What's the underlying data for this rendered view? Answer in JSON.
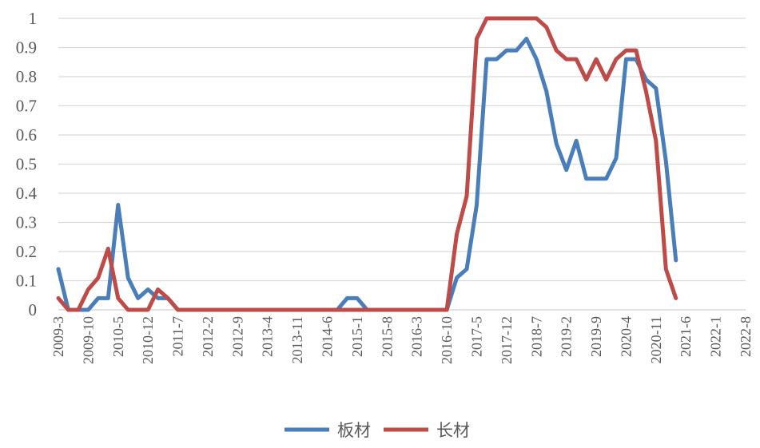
{
  "chart_data": {
    "type": "line",
    "x": [
      "2009-3",
      "2009-6",
      "2009-8",
      "2009-10",
      "2009-12",
      "2010-3",
      "2010-5",
      "2010-8",
      "2010-10",
      "2010-12",
      "2011-3",
      "2011-5",
      "2011-7",
      "2011-10",
      "2011-12",
      "2012-2",
      "2012-5",
      "2012-7",
      "2012-9",
      "2012-12",
      "2013-2",
      "2013-4",
      "2013-7",
      "2013-9",
      "2013-11",
      "2014-2",
      "2014-4",
      "2014-6",
      "2014-9",
      "2014-11",
      "2015-1",
      "2015-4",
      "2015-6",
      "2015-8",
      "2015-11",
      "2016-1",
      "2016-3",
      "2016-6",
      "2016-8",
      "2016-10",
      "2017-1",
      "2017-3",
      "2017-5",
      "2017-8",
      "2017-10",
      "2017-12",
      "2018-3",
      "2018-5",
      "2018-7",
      "2018-10",
      "2018-12",
      "2019-2",
      "2019-5",
      "2019-7",
      "2019-9",
      "2019-12",
      "2020-2",
      "2020-4",
      "2020-7",
      "2020-9",
      "2020-11",
      "2021-2",
      "2021-4",
      "2021-6",
      "2021-9",
      "2021-11",
      "2022-1",
      "2022-4",
      "2022-6",
      "2022-8"
    ],
    "x_tick_labels": [
      "2009-3",
      "2009-10",
      "2010-5",
      "2010-12",
      "2011-7",
      "2012-2",
      "2012-9",
      "2013-4",
      "2013-11",
      "2014-6",
      "2015-1",
      "2015-8",
      "2016-3",
      "2016-10",
      "2017-5",
      "2017-12",
      "2018-7",
      "2019-2",
      "2019-9",
      "2020-4",
      "2020-11",
      "2021-6",
      "2022-1",
      "2022-8"
    ],
    "series": [
      {
        "name": "板材",
        "color": "#4a7ebb",
        "values": [
          0.14,
          0,
          0,
          0,
          0.04,
          0.04,
          0.36,
          0.11,
          0.04,
          0.07,
          0.04,
          0.04,
          0,
          0,
          0,
          0,
          0,
          0,
          0,
          0,
          0,
          0,
          0,
          0,
          0,
          0,
          0,
          0,
          0,
          0.04,
          0.04,
          0,
          0,
          0,
          0,
          0,
          0,
          0,
          0,
          0,
          0.11,
          0.14,
          0.36,
          0.86,
          0.86,
          0.89,
          0.89,
          0.93,
          0.86,
          0.75,
          0.57,
          0.48,
          0.58,
          0.45,
          0.45,
          0.45,
          0.52,
          0.86,
          0.86,
          0.79,
          0.76,
          0.51,
          0.17,
          null,
          null,
          null,
          null,
          null,
          null,
          null
        ]
      },
      {
        "name": "长材",
        "color": "#be4b48",
        "values": [
          0.04,
          0,
          0,
          0.07,
          0.11,
          0.21,
          0.04,
          0,
          0,
          0,
          0.07,
          0.04,
          0,
          0,
          0,
          0,
          0,
          0,
          0,
          0,
          0,
          0,
          0,
          0,
          0,
          0,
          0,
          0,
          0,
          0,
          0,
          0,
          0,
          0,
          0,
          0,
          0,
          0,
          0,
          0,
          0.26,
          0.39,
          0.93,
          1,
          1,
          1,
          1,
          1,
          1,
          0.97,
          0.89,
          0.86,
          0.86,
          0.79,
          0.86,
          0.79,
          0.86,
          0.89,
          0.89,
          0.75,
          0.58,
          0.14,
          0.04,
          null,
          null,
          null,
          null,
          null,
          null,
          null
        ]
      }
    ],
    "y_ticks": [
      "0",
      "0.1",
      "0.2",
      "0.3",
      "0.4",
      "0.5",
      "0.6",
      "0.7",
      "0.8",
      "0.9",
      "1"
    ],
    "ylim": [
      0,
      1
    ],
    "grid": "horizontal",
    "legend": "bottom-center"
  }
}
